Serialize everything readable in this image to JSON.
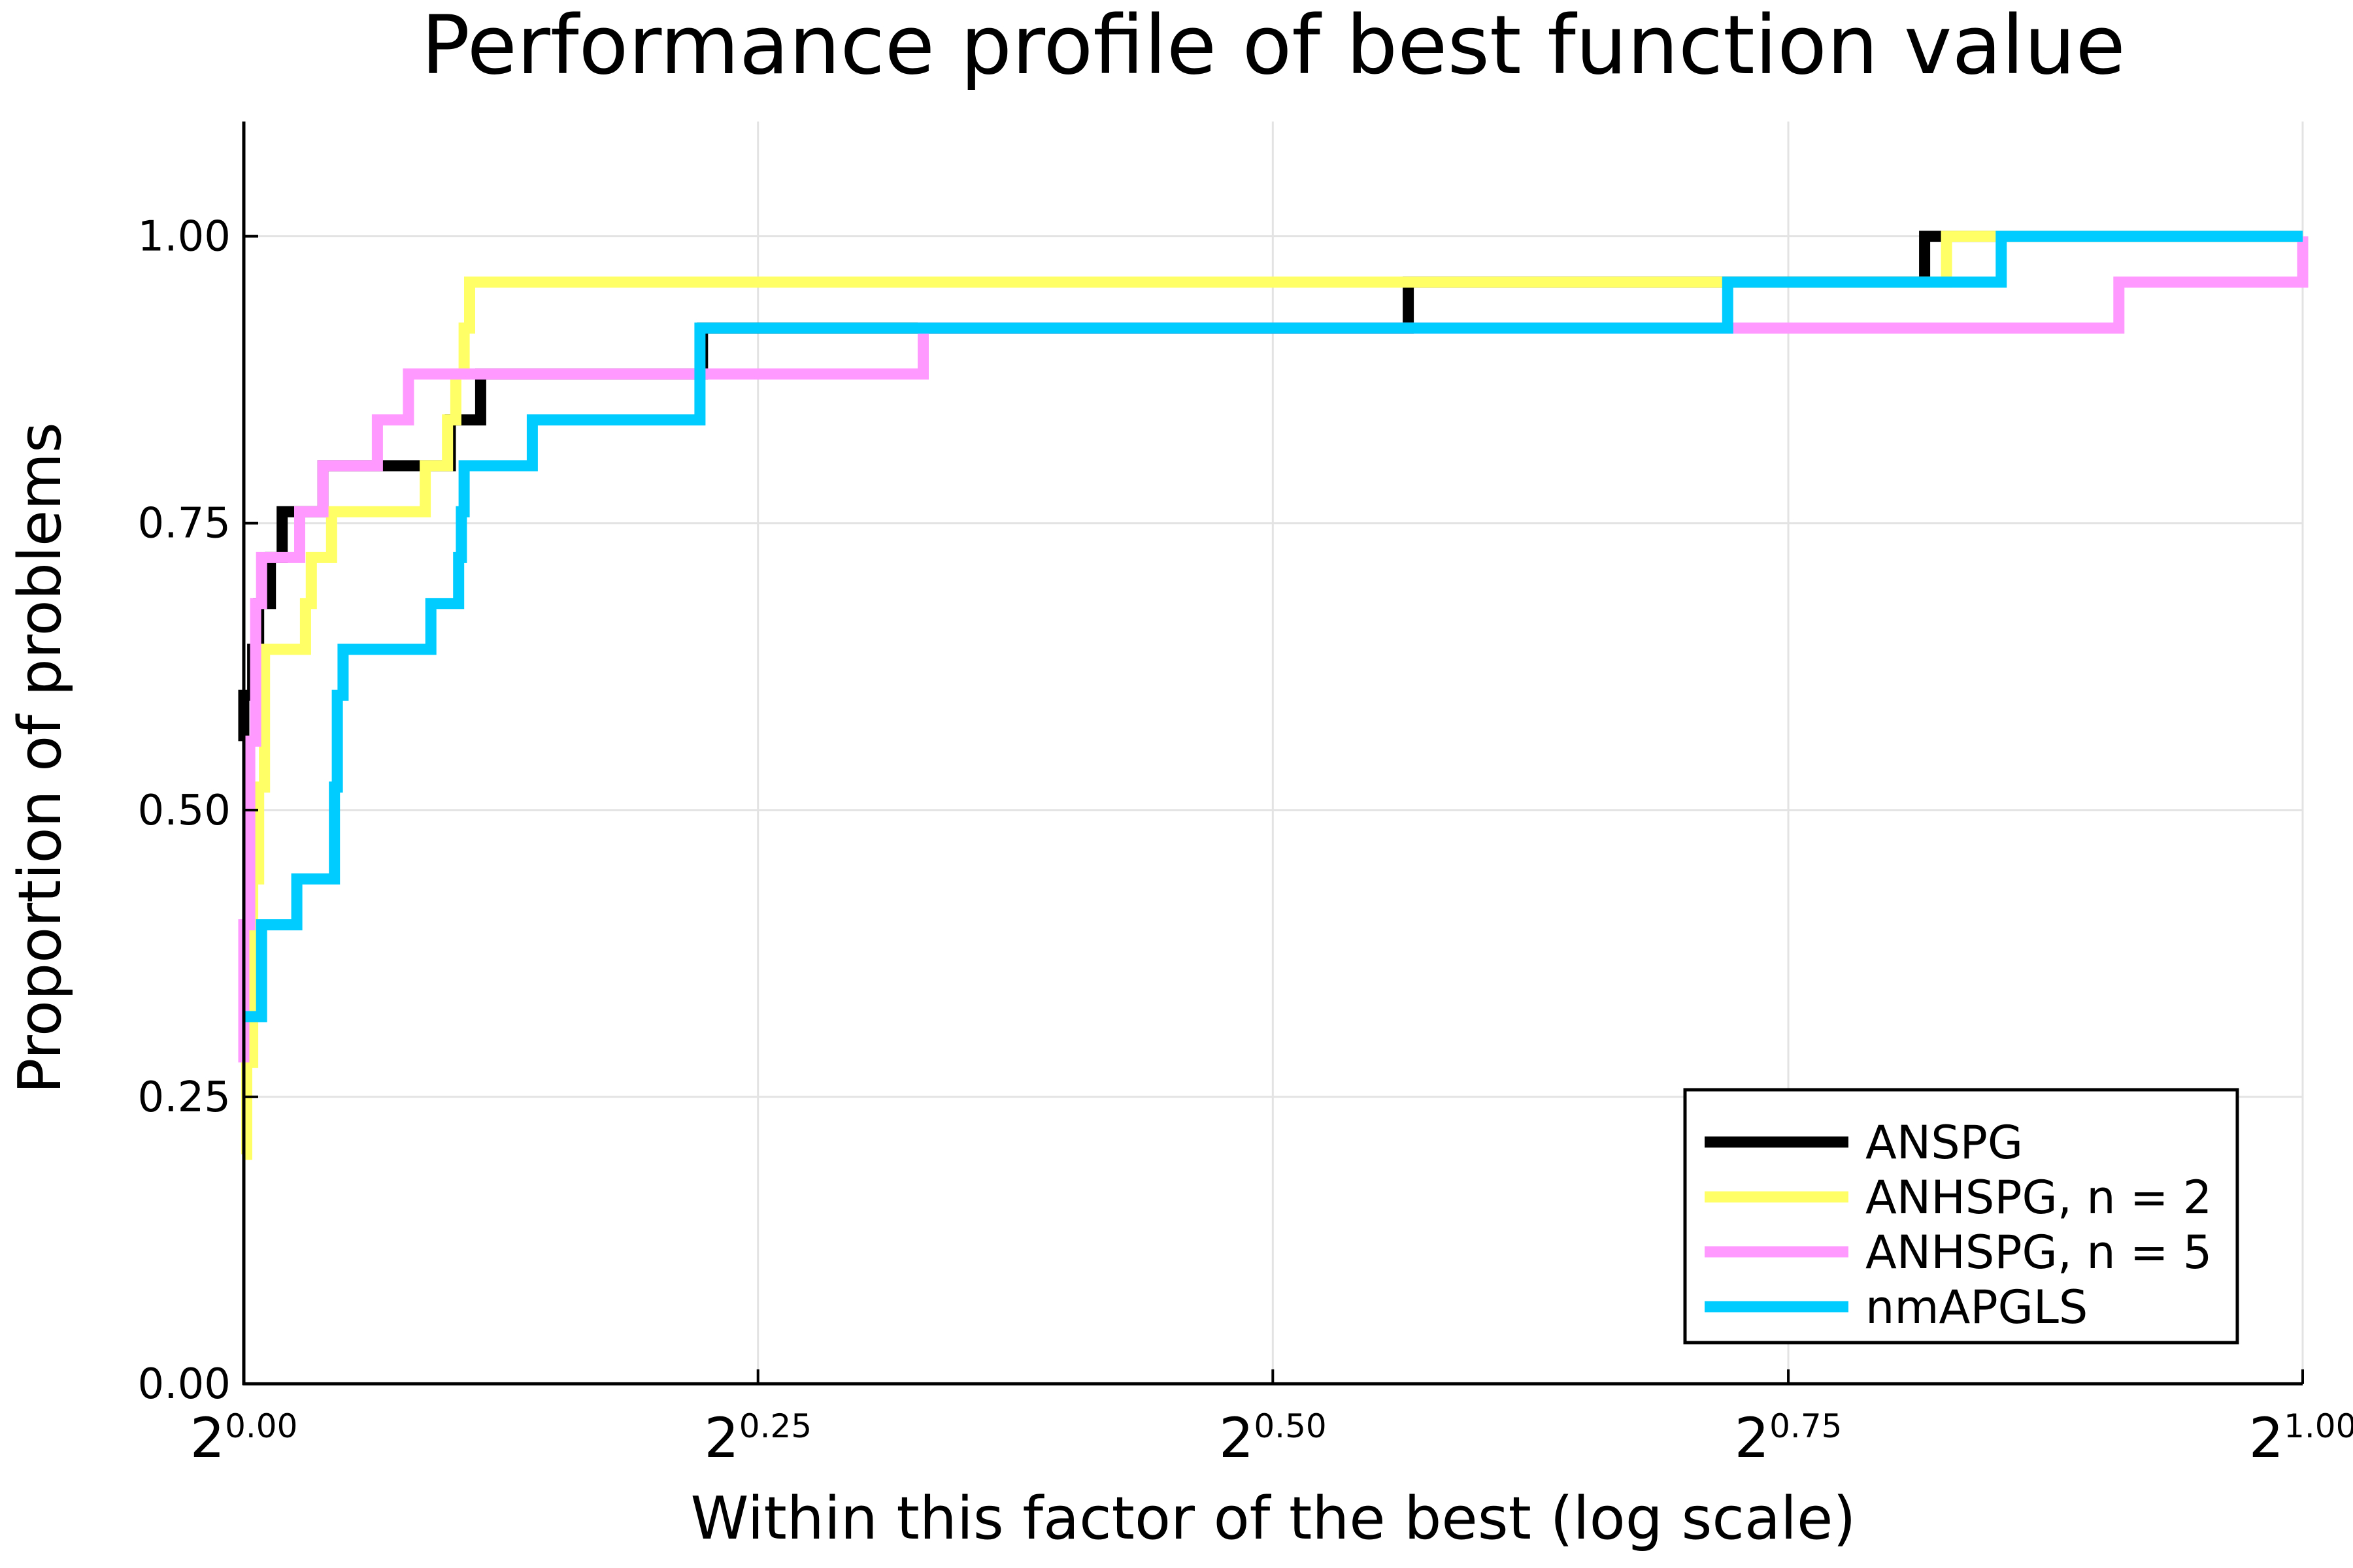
{
  "chart_data": {
    "type": "line",
    "title": "Performance profile of best function value",
    "xlabel": "Within this factor of the best (log scale)",
    "ylabel": "Proportion of problems",
    "x_scale": "log2",
    "xlim": [
      1.0,
      2.0
    ],
    "ylim": [
      0.0,
      1.1
    ],
    "x_ticks": [
      {
        "value": 1.0,
        "base": "2",
        "exp": "0.00"
      },
      {
        "value": 1.189,
        "base": "2",
        "exp": "0.25"
      },
      {
        "value": 1.414,
        "base": "2",
        "exp": "0.50"
      },
      {
        "value": 1.682,
        "base": "2",
        "exp": "0.75"
      },
      {
        "value": 2.0,
        "base": "2",
        "exp": "1.00"
      }
    ],
    "y_ticks": [
      "0.00",
      "0.25",
      "0.50",
      "0.75",
      "1.00"
    ],
    "y_tick_values": [
      0.0,
      0.25,
      0.5,
      0.75,
      1.0
    ],
    "grid": true,
    "legend_position": "bottom-right",
    "series": [
      {
        "name": "ANSPG",
        "color": "#000000",
        "x": [
          1.0,
          1.0,
          1.003,
          1.005,
          1.009,
          1.013,
          1.027,
          1.064,
          1.072,
          1.083,
          1.109,
          1.167,
          1.48,
          1.761,
          1.794,
          2.0
        ],
        "y": [
          0.56,
          0.6,
          0.64,
          0.68,
          0.72,
          0.76,
          0.8,
          0.8,
          0.84,
          0.88,
          0.88,
          0.92,
          0.96,
          1.0,
          1.0,
          1.0
        ]
      },
      {
        "name": "ANHSPG, n = 2",
        "color": "#FFFF66",
        "x": [
          1.0,
          1.001,
          1.003,
          1.005,
          1.007,
          1.021,
          1.023,
          1.03,
          1.063,
          1.071,
          1.074,
          1.077,
          1.079,
          1.215,
          1.774,
          2.0
        ],
        "y": [
          0.2,
          0.28,
          0.44,
          0.52,
          0.64,
          0.68,
          0.72,
          0.76,
          0.8,
          0.84,
          0.88,
          0.92,
          0.96,
          0.96,
          1.0,
          1.0
        ]
      },
      {
        "name": "ANHSPG, n = 5",
        "color": "#FF99FF",
        "x": [
          1.0,
          1.0,
          1.002,
          1.004,
          1.006,
          1.019,
          1.027,
          1.046,
          1.054,
          1.057,
          1.257,
          1.753,
          1.88,
          2.0
        ],
        "y": [
          0.28,
          0.4,
          0.56,
          0.68,
          0.72,
          0.76,
          0.8,
          0.84,
          0.84,
          0.88,
          0.92,
          0.92,
          0.96,
          1.0
        ]
      },
      {
        "name": "nmAPGLS",
        "color": "#00CCFF",
        "x": [
          1.0,
          1.006,
          1.018,
          1.031,
          1.032,
          1.034,
          1.065,
          1.075,
          1.076,
          1.077,
          1.078,
          1.102,
          1.166,
          1.648,
          1.807,
          2.0
        ],
        "y": [
          0.32,
          0.4,
          0.44,
          0.52,
          0.6,
          0.64,
          0.68,
          0.72,
          0.76,
          0.8,
          0.8,
          0.84,
          0.92,
          0.96,
          1.0,
          1.0
        ]
      }
    ]
  }
}
